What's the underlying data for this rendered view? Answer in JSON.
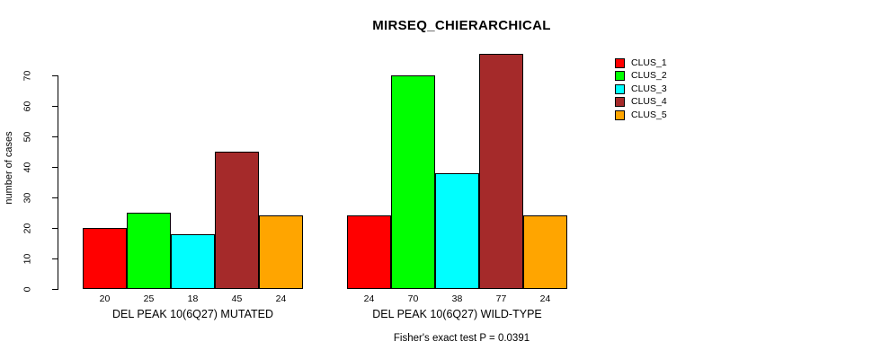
{
  "chart_data": {
    "type": "bar",
    "title": "MIRSEQ_CHIERARCHICAL",
    "ylabel": "number of cases",
    "xlabel": "",
    "annotation": "Fisher's exact test P = 0.0391",
    "ylim": [
      0,
      77
    ],
    "y_ticks": [
      0,
      10,
      20,
      30,
      40,
      50,
      60,
      70
    ],
    "grid": false,
    "legend_position": "topright",
    "categories": [
      "DEL PEAK 10(6Q27) MUTATED",
      "DEL PEAK 10(6Q27) WILD-TYPE"
    ],
    "series": [
      {
        "name": "CLUS_1",
        "color": "#FF0000",
        "values": [
          20,
          24
        ]
      },
      {
        "name": "CLUS_2",
        "color": "#00FF00",
        "values": [
          25,
          70
        ]
      },
      {
        "name": "CLUS_3",
        "color": "#00FFFF",
        "values": [
          18,
          38
        ]
      },
      {
        "name": "CLUS_4",
        "color": "#A52A2A",
        "values": [
          45,
          77
        ]
      },
      {
        "name": "CLUS_5",
        "color": "#FFA500",
        "values": [
          24,
          24
        ]
      }
    ],
    "bar_value_labels": {
      "DEL PEAK 10(6Q27) MUTATED": [
        20,
        25,
        18,
        45,
        24
      ],
      "DEL PEAK 10(6Q27) WILD-TYPE": [
        24,
        70,
        38,
        77,
        24
      ]
    },
    "axis_color": "#000000",
    "bar_border_color": "#000000",
    "background_color": "#FFFFFF"
  }
}
